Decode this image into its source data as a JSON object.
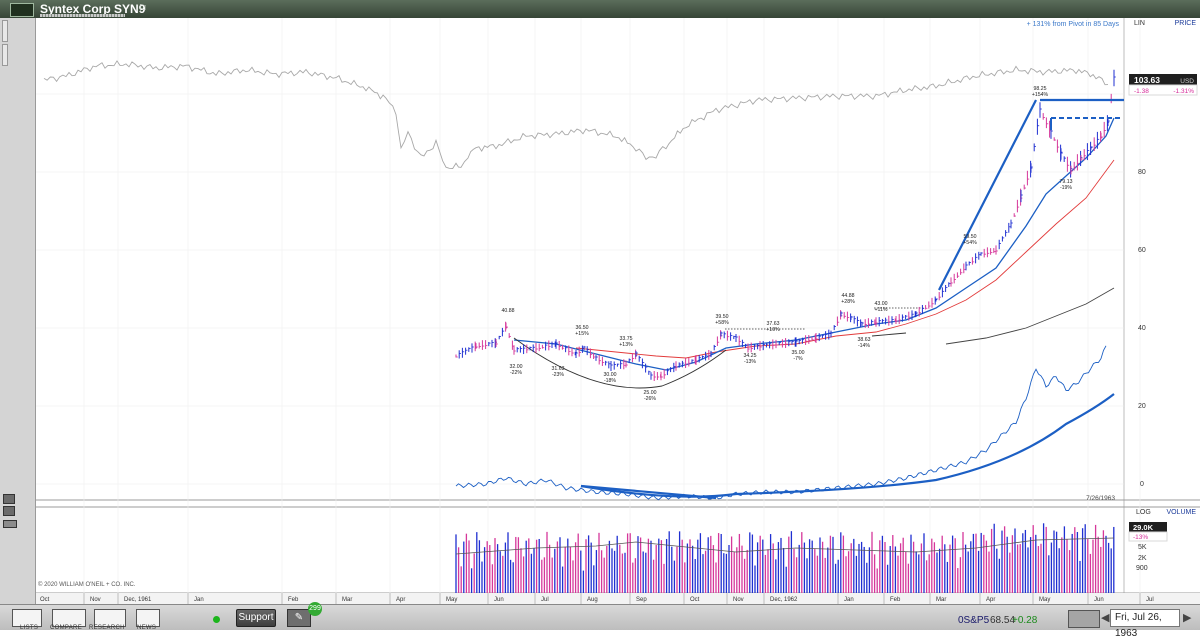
{
  "window": {
    "title": "Syntex Corp  SYN9"
  },
  "header": {
    "pivot_note": "+ 131% from Pivot in 85 Days",
    "scale_lin": "LIN",
    "scale_price": "PRICE",
    "scale_log": "LOG",
    "scale_volume": "VOLUME"
  },
  "price_box": {
    "price": "103.63",
    "currency": "USD",
    "change": "-1.38",
    "change_pct": "-1.31%"
  },
  "volume_box": {
    "volume": "29.0K",
    "change_pct": "-13%"
  },
  "price_axis": [
    "80",
    "60",
    "40",
    "20",
    "0"
  ],
  "volume_axis": [
    "5K",
    "2K",
    "900"
  ],
  "chart_date": "7/26/1963",
  "copyright": "© 2020 WILLIAM O'NEIL + CO. INC.",
  "months": [
    {
      "label": "Oct",
      "sep": false
    },
    {
      "label": "Nov",
      "sep": false
    },
    {
      "label": "Dec, 1961",
      "sep": false
    },
    {
      "label": "Jan",
      "sep": false
    },
    {
      "label": "Feb",
      "sep": false
    },
    {
      "label": "Mar",
      "sep": false
    },
    {
      "label": "Apr",
      "sep": false
    },
    {
      "label": "May",
      "sep": false
    },
    {
      "label": "Jun",
      "sep": false
    },
    {
      "label": "Jul",
      "sep": false
    },
    {
      "label": "Aug",
      "sep": false
    },
    {
      "label": "Sep",
      "sep": false
    },
    {
      "label": "Oct",
      "sep": false
    },
    {
      "label": "Nov",
      "sep": false
    },
    {
      "label": "Dec, 1962",
      "sep": false
    },
    {
      "label": "Jan",
      "sep": false
    },
    {
      "label": "Feb",
      "sep": false
    },
    {
      "label": "Mar",
      "sep": false
    },
    {
      "label": "Apr",
      "sep": false
    },
    {
      "label": "May",
      "sep": false
    },
    {
      "label": "Jun",
      "sep": false
    },
    {
      "label": "Jul",
      "sep": false
    }
  ],
  "annotations": [
    {
      "lines": [
        "40.88"
      ]
    },
    {
      "lines": [
        "32.00",
        "-22%"
      ]
    },
    {
      "lines": [
        "36.50",
        "+15%"
      ]
    },
    {
      "lines": [
        "31.63",
        "-23%"
      ]
    },
    {
      "lines": [
        "33.75",
        "+13%"
      ]
    },
    {
      "lines": [
        "30.00",
        "-18%"
      ]
    },
    {
      "lines": [
        "25.00",
        "-26%"
      ]
    },
    {
      "lines": [
        "39.50",
        "+58%"
      ]
    },
    {
      "lines": [
        "34.25",
        "-13%"
      ]
    },
    {
      "lines": [
        "37.63",
        "+10%"
      ]
    },
    {
      "lines": [
        "35.00",
        "-7%"
      ]
    },
    {
      "lines": [
        "44.88",
        "+28%"
      ]
    },
    {
      "lines": [
        "38.63",
        "-14%"
      ]
    },
    {
      "lines": [
        "43.00",
        "+11%"
      ]
    },
    {
      "lines": [
        "59.50",
        "+54%"
      ]
    },
    {
      "lines": [
        "98.25",
        "+154%"
      ]
    },
    {
      "lines": [
        "79.13",
        "-19%"
      ]
    }
  ],
  "bottom_bar": {
    "tabs": [
      "LISTS",
      "COMPARE",
      "RESEARCH",
      "NEWS"
    ],
    "support_label": "Support",
    "notification_count": "299",
    "sp_label": "0S&P5",
    "sp_value": "68.54",
    "sp_change": "+0.28",
    "date": "Fri, Jul 26, 1963"
  },
  "colors": {
    "up": "#1f2fd1",
    "down": "#d6379a",
    "ma_blue": "#1c5fc4",
    "ma_red": "#e23b3b",
    "ma_black": "#333333",
    "index_line": "#a8a8a8"
  }
}
